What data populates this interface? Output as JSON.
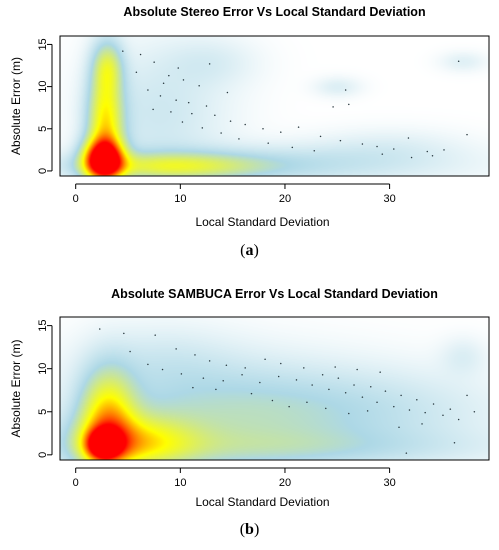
{
  "figure": {
    "captions": [
      {
        "open": "(",
        "letter": "a",
        "close": ")"
      },
      {
        "open": "(",
        "letter": "b",
        "close": ")"
      }
    ]
  },
  "chart_data": [
    {
      "type": "heatmap",
      "title": "Absolute Stereo Error Vs Local Standard Deviation",
      "xlabel": "Local Standard Deviation",
      "ylabel": "Absolute Error (m)",
      "xlim": [
        -1.5,
        39.5
      ],
      "ylim": [
        -0.6,
        16
      ],
      "xticks": [
        0,
        10,
        20,
        30
      ],
      "yticks": [
        0,
        5,
        10,
        15
      ],
      "colormap": [
        "#ffffff",
        "#add8e6",
        "#ffff00",
        "#ff0000"
      ],
      "density_clusters": [
        {
          "x": 2.6,
          "y": 1.4,
          "sx": 1.3,
          "sy": 1.6,
          "w": 1.0
        },
        {
          "x": 2.8,
          "y": 5.5,
          "sx": 1.2,
          "sy": 4.5,
          "w": 0.55
        },
        {
          "x": 3.0,
          "y": 12.5,
          "sx": 1.0,
          "sy": 2.2,
          "w": 0.3
        },
        {
          "x": 9.0,
          "y": 0.6,
          "sx": 6.0,
          "sy": 1.1,
          "w": 0.35
        },
        {
          "x": 20.0,
          "y": 0.8,
          "sx": 11.0,
          "sy": 1.6,
          "w": 0.16
        },
        {
          "x": 8.0,
          "y": 7.0,
          "sx": 4.5,
          "sy": 5.5,
          "w": 0.12
        },
        {
          "x": 13.0,
          "y": 13.0,
          "sx": 3.0,
          "sy": 2.0,
          "w": 0.07
        },
        {
          "x": 25.0,
          "y": 10.0,
          "sx": 1.5,
          "sy": 0.8,
          "w": 0.08
        },
        {
          "x": 37.0,
          "y": 13.0,
          "sx": 1.5,
          "sy": 0.8,
          "w": 0.07
        },
        {
          "x": 30.0,
          "y": 3.0,
          "sx": 5.0,
          "sy": 1.5,
          "w": 0.06
        }
      ],
      "outliers": [
        [
          4.5,
          14.2
        ],
        [
          6.2,
          13.8
        ],
        [
          7.5,
          12.9
        ],
        [
          5.8,
          11.7
        ],
        [
          8.9,
          11.3
        ],
        [
          10.3,
          10.8
        ],
        [
          11.8,
          10.1
        ],
        [
          6.9,
          9.6
        ],
        [
          8.1,
          8.9
        ],
        [
          9.6,
          8.4
        ],
        [
          10.8,
          8.1
        ],
        [
          12.5,
          7.7
        ],
        [
          7.4,
          7.3
        ],
        [
          9.1,
          7.0
        ],
        [
          11.1,
          6.8
        ],
        [
          13.3,
          6.6
        ],
        [
          14.8,
          5.9
        ],
        [
          16.2,
          5.5
        ],
        [
          10.2,
          5.8
        ],
        [
          12.1,
          5.1
        ],
        [
          17.9,
          5.0
        ],
        [
          19.6,
          4.6
        ],
        [
          21.3,
          5.2
        ],
        [
          23.4,
          4.1
        ],
        [
          24.6,
          7.6
        ],
        [
          26.1,
          7.9
        ],
        [
          25.3,
          3.6
        ],
        [
          27.4,
          3.2
        ],
        [
          28.8,
          2.9
        ],
        [
          30.4,
          2.6
        ],
        [
          31.8,
          3.9
        ],
        [
          33.6,
          2.3
        ],
        [
          35.2,
          2.5
        ],
        [
          37.4,
          4.3
        ],
        [
          15.6,
          3.8
        ],
        [
          18.4,
          3.3
        ],
        [
          20.7,
          2.8
        ],
        [
          22.8,
          2.4
        ],
        [
          13.9,
          4.5
        ],
        [
          8.4,
          10.4
        ],
        [
          9.8,
          12.2
        ],
        [
          12.8,
          12.7
        ],
        [
          14.5,
          9.3
        ],
        [
          25.8,
          9.6
        ],
        [
          36.6,
          13.0
        ],
        [
          34.1,
          1.8
        ],
        [
          32.1,
          1.6
        ],
        [
          29.3,
          2.0
        ]
      ]
    },
    {
      "type": "heatmap",
      "title": "Absolute SAMBUCA Error Vs Local Standard Deviation",
      "xlabel": "Local Standard Deviation",
      "ylabel": "Absolute Error (m)",
      "xlim": [
        -1.5,
        39.5
      ],
      "ylim": [
        -0.6,
        16
      ],
      "xticks": [
        0,
        10,
        20,
        30
      ],
      "yticks": [
        0,
        5,
        10,
        15
      ],
      "colormap": [
        "#ffffff",
        "#add8e6",
        "#ffff00",
        "#ff0000"
      ],
      "density_clusters": [
        {
          "x": 2.6,
          "y": 1.2,
          "sx": 1.1,
          "sy": 1.2,
          "w": 0.8
        },
        {
          "x": 3.0,
          "y": 4.0,
          "sx": 1.8,
          "sy": 4.0,
          "w": 0.55
        },
        {
          "x": 5.5,
          "y": 1.5,
          "sx": 4.0,
          "sy": 2.2,
          "w": 0.45
        },
        {
          "x": 14.0,
          "y": 4.5,
          "sx": 9.0,
          "sy": 4.5,
          "w": 0.22
        },
        {
          "x": 28.0,
          "y": 5.0,
          "sx": 9.0,
          "sy": 3.5,
          "w": 0.13
        },
        {
          "x": 8.0,
          "y": 11.0,
          "sx": 5.0,
          "sy": 3.0,
          "w": 0.08
        },
        {
          "x": 37.0,
          "y": 11.5,
          "sx": 1.5,
          "sy": 1.5,
          "w": 0.07
        },
        {
          "x": 20.0,
          "y": 0.8,
          "sx": 14.0,
          "sy": 1.5,
          "w": 0.12
        }
      ],
      "outliers": [
        [
          2.3,
          14.6
        ],
        [
          4.6,
          14.1
        ],
        [
          7.6,
          13.9
        ],
        [
          9.6,
          12.3
        ],
        [
          5.2,
          12.0
        ],
        [
          11.4,
          11.6
        ],
        [
          12.8,
          10.9
        ],
        [
          14.4,
          10.4
        ],
        [
          16.2,
          10.1
        ],
        [
          18.1,
          11.1
        ],
        [
          19.6,
          10.6
        ],
        [
          6.9,
          10.5
        ],
        [
          8.3,
          9.9
        ],
        [
          10.1,
          9.4
        ],
        [
          12.2,
          8.9
        ],
        [
          14.1,
          8.6
        ],
        [
          15.9,
          9.3
        ],
        [
          17.6,
          8.4
        ],
        [
          19.4,
          9.1
        ],
        [
          21.1,
          8.7
        ],
        [
          22.6,
          8.1
        ],
        [
          23.6,
          9.3
        ],
        [
          24.2,
          7.6
        ],
        [
          25.1,
          8.9
        ],
        [
          25.8,
          7.2
        ],
        [
          26.6,
          8.1
        ],
        [
          27.4,
          6.7
        ],
        [
          28.2,
          7.9
        ],
        [
          28.8,
          6.1
        ],
        [
          29.6,
          7.4
        ],
        [
          30.4,
          5.6
        ],
        [
          31.1,
          6.9
        ],
        [
          31.9,
          5.2
        ],
        [
          32.6,
          6.4
        ],
        [
          33.4,
          4.9
        ],
        [
          34.2,
          5.9
        ],
        [
          35.1,
          4.6
        ],
        [
          35.8,
          5.3
        ],
        [
          36.6,
          4.1
        ],
        [
          37.4,
          6.9
        ],
        [
          38.1,
          5.0
        ],
        [
          22.1,
          6.1
        ],
        [
          23.9,
          5.4
        ],
        [
          26.1,
          4.8
        ],
        [
          27.9,
          5.1
        ],
        [
          20.4,
          5.6
        ],
        [
          18.8,
          6.3
        ],
        [
          16.8,
          7.1
        ],
        [
          24.8,
          10.2
        ],
        [
          29.1,
          9.6
        ],
        [
          21.8,
          10.1
        ],
        [
          33.1,
          3.6
        ],
        [
          30.9,
          3.2
        ],
        [
          36.2,
          1.4
        ],
        [
          31.6,
          0.2
        ],
        [
          13.4,
          7.6
        ],
        [
          11.2,
          7.8
        ],
        [
          26.9,
          9.9
        ]
      ]
    }
  ]
}
